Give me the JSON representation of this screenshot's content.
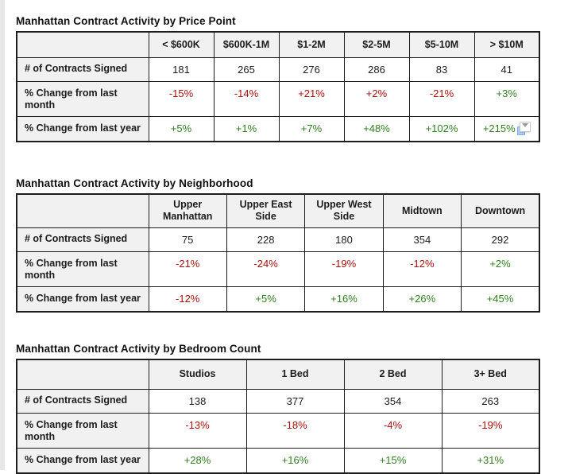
{
  "page": {
    "background": "#ffffff",
    "left_strip_color": "#e7e7e7"
  },
  "colors": {
    "red": "#a80f0a",
    "green": "#2f7d1f",
    "header_bg": "#f1f1f1",
    "border": "#1d1d1d"
  },
  "tables": [
    {
      "title": "Manhattan Contract Activity by Price Point",
      "corner_label": "",
      "columns": [
        "< $600K",
        "$600K-1M",
        "$1-2M",
        "$2-5M",
        "$5-10M",
        "> $10M"
      ],
      "rows": [
        {
          "label": "# of Contracts Signed",
          "values": [
            "181",
            "265",
            "276",
            "286",
            "83",
            "41"
          ],
          "colors": [
            "black",
            "black",
            "black",
            "black",
            "black",
            "black"
          ]
        },
        {
          "label": "% Change from last month",
          "values": [
            "-15%",
            "-14%",
            "+21%",
            "+2%",
            "-21%",
            "+3%"
          ],
          "colors": [
            "red",
            "red",
            "red",
            "red",
            "red",
            "green"
          ]
        },
        {
          "label": "% Change from last year",
          "values": [
            "+5%",
            "+1%",
            "+7%",
            "+48%",
            "+102%",
            "+215%"
          ],
          "colors": [
            "green",
            "green",
            "green",
            "green",
            "green",
            "green"
          ],
          "icon": {
            "cell": 5,
            "name": "paste-options-icon"
          }
        }
      ]
    },
    {
      "title": "Manhattan Contract Activity by Neighborhood",
      "corner_label": "",
      "columns": [
        "Upper Manhattan",
        "Upper East Side",
        "Upper West Side",
        "Midtown",
        "Downtown"
      ],
      "rows": [
        {
          "label": "# of Contracts Signed",
          "values": [
            "75",
            "228",
            "180",
            "354",
            "292"
          ],
          "colors": [
            "black",
            "black",
            "black",
            "black",
            "black"
          ]
        },
        {
          "label": "% Change from last month",
          "values": [
            "-21%",
            "-24%",
            "-19%",
            "-12%",
            "+2%"
          ],
          "colors": [
            "red",
            "red",
            "red",
            "red",
            "green"
          ]
        },
        {
          "label": "% Change from last year",
          "values": [
            "-12%",
            "+5%",
            "+16%",
            "+26%",
            "+45%"
          ],
          "colors": [
            "red",
            "green",
            "green",
            "green",
            "green"
          ]
        }
      ]
    },
    {
      "title": "Manhattan Contract Activity by Bedroom Count",
      "corner_label": "",
      "columns": [
        "Studios",
        "1 Bed",
        "2 Bed",
        "3+ Bed"
      ],
      "rows": [
        {
          "label": "# of Contracts Signed",
          "values": [
            "138",
            "377",
            "354",
            "263"
          ],
          "colors": [
            "black",
            "black",
            "black",
            "black"
          ]
        },
        {
          "label": "% Change from last month",
          "values": [
            "-13%",
            "-18%",
            "-4%",
            "-19%"
          ],
          "colors": [
            "red",
            "red",
            "red",
            "red"
          ]
        },
        {
          "label": "% Change from last year",
          "values": [
            "+28%",
            "+16%",
            "+15%",
            "+31%"
          ],
          "colors": [
            "green",
            "green",
            "green",
            "green"
          ]
        }
      ]
    }
  ]
}
